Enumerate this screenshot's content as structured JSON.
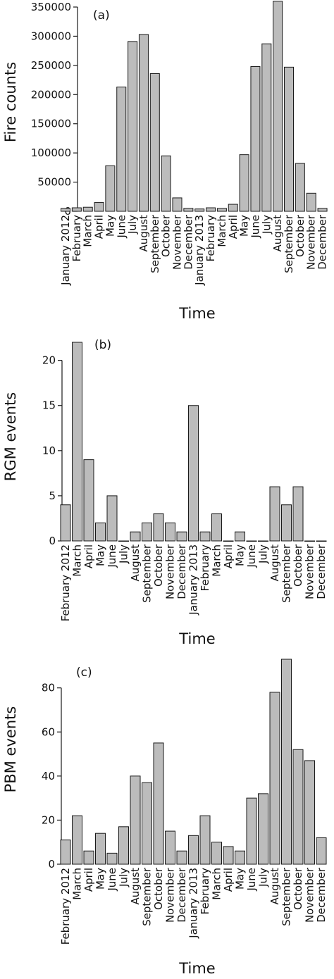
{
  "chart_data": [
    {
      "type": "bar",
      "panel_label": "(a)",
      "ylabel": "Fire counts",
      "xlabel": "Time",
      "ylim": [
        0,
        350000
      ],
      "yticks": [
        0,
        50000,
        100000,
        150000,
        200000,
        250000,
        300000,
        350000
      ],
      "categories": [
        "January 2012",
        "February",
        "March",
        "April",
        "May",
        "June",
        "July",
        "August",
        "September",
        "October",
        "November",
        "December",
        "January 2013",
        "February",
        "March",
        "April",
        "May",
        "June",
        "July",
        "August",
        "September",
        "October",
        "November",
        "December"
      ],
      "values": [
        5000,
        6000,
        7000,
        15000,
        78000,
        213000,
        291000,
        303000,
        236000,
        95000,
        23000,
        5000,
        4000,
        6000,
        5000,
        12000,
        97000,
        248000,
        287000,
        360000,
        247000,
        82000,
        31000,
        5000
      ]
    },
    {
      "type": "bar",
      "panel_label": "(b)",
      "ylabel": "RGM events",
      "xlabel": "Time",
      "ylim": [
        0,
        22
      ],
      "yticks": [
        0,
        5,
        10,
        15,
        20
      ],
      "categories": [
        "February 2012",
        "March",
        "April",
        "May",
        "June",
        "July",
        "August",
        "September",
        "October",
        "November",
        "December",
        "January 2013",
        "February",
        "March",
        "April",
        "May",
        "June",
        "July",
        "August",
        "September",
        "October",
        "November",
        "December"
      ],
      "values": [
        4,
        22,
        9,
        2,
        5,
        0,
        1,
        2,
        3,
        2,
        1,
        15,
        1,
        3,
        0,
        1,
        0,
        0,
        6,
        4,
        6,
        0,
        0
      ]
    },
    {
      "type": "bar",
      "panel_label": "(c)",
      "ylabel": "PBM events",
      "xlabel": "Time",
      "ylim": [
        0,
        93
      ],
      "yticks": [
        0,
        20,
        40,
        60,
        80
      ],
      "categories": [
        "February 2012",
        "March",
        "April",
        "May",
        "June",
        "July",
        "August",
        "September",
        "October",
        "November",
        "December",
        "January 2013",
        "February",
        "March",
        "April",
        "May",
        "June",
        "July",
        "August",
        "September",
        "October",
        "November",
        "December"
      ],
      "values": [
        11,
        22,
        6,
        14,
        5,
        17,
        40,
        37,
        55,
        15,
        6,
        13,
        22,
        10,
        8,
        6,
        30,
        32,
        78,
        93,
        52,
        47,
        12
      ]
    }
  ]
}
